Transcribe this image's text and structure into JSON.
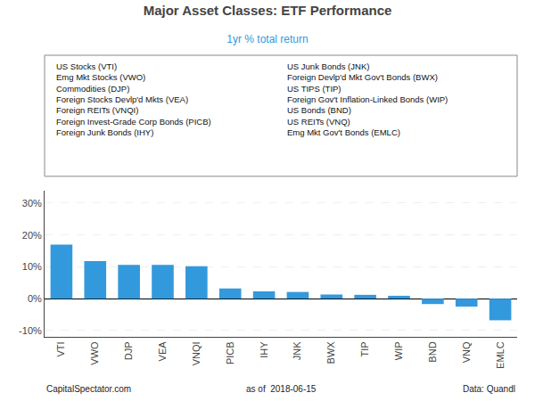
{
  "chart_data": {
    "type": "bar",
    "title": "Major Asset Classes: ETF Performance",
    "subtitle": "1yr % total return",
    "categories": [
      "VTI",
      "VWO",
      "DJP",
      "VEA",
      "VNQI",
      "PICB",
      "IHY",
      "JNK",
      "BWX",
      "TIP",
      "WIP",
      "BND",
      "VNQ",
      "EMLC"
    ],
    "values": [
      17.0,
      11.8,
      10.6,
      10.6,
      10.2,
      3.2,
      2.3,
      2.1,
      1.3,
      1.2,
      0.9,
      -1.7,
      -2.5,
      -6.8
    ],
    "color": "#3399dd",
    "ylim": [
      -12,
      34
    ],
    "yticks": [
      {
        "value": -10,
        "label": "-10%"
      },
      {
        "value": 0,
        "label": "0%"
      },
      {
        "value": 10,
        "label": "10%"
      },
      {
        "value": 20,
        "label": "20%"
      },
      {
        "value": 30,
        "label": "30%"
      }
    ],
    "grid": true,
    "annotations": [
      "US Stocks (VTI)",
      "Emg Mkt Stocks (VWO)",
      "Commodities (DJP)",
      "Foreign Stocks Devlp'd Mkts (VEA)",
      "Foreign REITs (VNQI)",
      "Foreign Invest-Grade Corp Bonds (PICB)",
      "Foreign Junk Bonds (IHY)",
      "US Junk Bonds (JNK)",
      "Foreign Devlp'd Mkt Gov't Bonds (BWX)",
      "US TIPS (TIP)",
      "Foreign Gov't Inflation-Linked Bonds (WIP)",
      "US Bonds (BND)",
      "US REITs (VNQ)",
      "Emg Mkt Gov't Bonds (EMLC)",
      "CapitalSpectator.com",
      "as of  2018-06-15",
      "Data: Quandl"
    ]
  }
}
